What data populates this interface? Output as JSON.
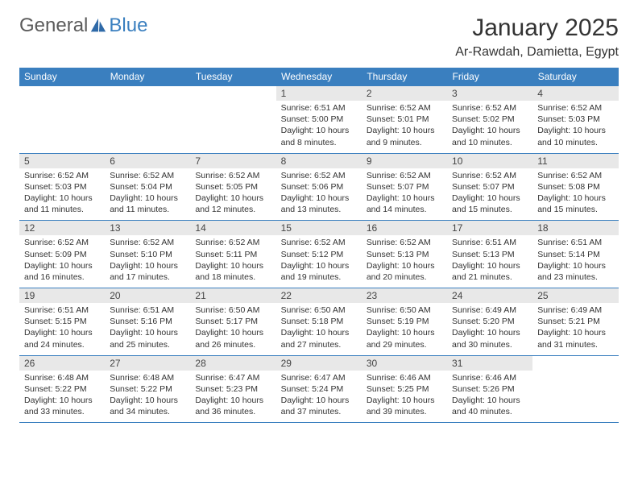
{
  "brand": {
    "part1": "General",
    "part2": "Blue"
  },
  "title": "January 2025",
  "location": "Ar-Rawdah, Damietta, Egypt",
  "colors": {
    "header_bg": "#3a7fbf",
    "header_text": "#ffffff",
    "daynum_bg": "#e8e8e8",
    "border": "#3a7fbf",
    "body_text": "#333333",
    "brand_grey": "#5b5b5b",
    "brand_blue": "#3a7fbf"
  },
  "weekdays": [
    "Sunday",
    "Monday",
    "Tuesday",
    "Wednesday",
    "Thursday",
    "Friday",
    "Saturday"
  ],
  "weeks": [
    [
      {
        "n": "",
        "sunrise": "",
        "sunset": "",
        "daylight": ""
      },
      {
        "n": "",
        "sunrise": "",
        "sunset": "",
        "daylight": ""
      },
      {
        "n": "",
        "sunrise": "",
        "sunset": "",
        "daylight": ""
      },
      {
        "n": "1",
        "sunrise": "Sunrise: 6:51 AM",
        "sunset": "Sunset: 5:00 PM",
        "daylight": "Daylight: 10 hours and 8 minutes."
      },
      {
        "n": "2",
        "sunrise": "Sunrise: 6:52 AM",
        "sunset": "Sunset: 5:01 PM",
        "daylight": "Daylight: 10 hours and 9 minutes."
      },
      {
        "n": "3",
        "sunrise": "Sunrise: 6:52 AM",
        "sunset": "Sunset: 5:02 PM",
        "daylight": "Daylight: 10 hours and 10 minutes."
      },
      {
        "n": "4",
        "sunrise": "Sunrise: 6:52 AM",
        "sunset": "Sunset: 5:03 PM",
        "daylight": "Daylight: 10 hours and 10 minutes."
      }
    ],
    [
      {
        "n": "5",
        "sunrise": "Sunrise: 6:52 AM",
        "sunset": "Sunset: 5:03 PM",
        "daylight": "Daylight: 10 hours and 11 minutes."
      },
      {
        "n": "6",
        "sunrise": "Sunrise: 6:52 AM",
        "sunset": "Sunset: 5:04 PM",
        "daylight": "Daylight: 10 hours and 11 minutes."
      },
      {
        "n": "7",
        "sunrise": "Sunrise: 6:52 AM",
        "sunset": "Sunset: 5:05 PM",
        "daylight": "Daylight: 10 hours and 12 minutes."
      },
      {
        "n": "8",
        "sunrise": "Sunrise: 6:52 AM",
        "sunset": "Sunset: 5:06 PM",
        "daylight": "Daylight: 10 hours and 13 minutes."
      },
      {
        "n": "9",
        "sunrise": "Sunrise: 6:52 AM",
        "sunset": "Sunset: 5:07 PM",
        "daylight": "Daylight: 10 hours and 14 minutes."
      },
      {
        "n": "10",
        "sunrise": "Sunrise: 6:52 AM",
        "sunset": "Sunset: 5:07 PM",
        "daylight": "Daylight: 10 hours and 15 minutes."
      },
      {
        "n": "11",
        "sunrise": "Sunrise: 6:52 AM",
        "sunset": "Sunset: 5:08 PM",
        "daylight": "Daylight: 10 hours and 15 minutes."
      }
    ],
    [
      {
        "n": "12",
        "sunrise": "Sunrise: 6:52 AM",
        "sunset": "Sunset: 5:09 PM",
        "daylight": "Daylight: 10 hours and 16 minutes."
      },
      {
        "n": "13",
        "sunrise": "Sunrise: 6:52 AM",
        "sunset": "Sunset: 5:10 PM",
        "daylight": "Daylight: 10 hours and 17 minutes."
      },
      {
        "n": "14",
        "sunrise": "Sunrise: 6:52 AM",
        "sunset": "Sunset: 5:11 PM",
        "daylight": "Daylight: 10 hours and 18 minutes."
      },
      {
        "n": "15",
        "sunrise": "Sunrise: 6:52 AM",
        "sunset": "Sunset: 5:12 PM",
        "daylight": "Daylight: 10 hours and 19 minutes."
      },
      {
        "n": "16",
        "sunrise": "Sunrise: 6:52 AM",
        "sunset": "Sunset: 5:13 PM",
        "daylight": "Daylight: 10 hours and 20 minutes."
      },
      {
        "n": "17",
        "sunrise": "Sunrise: 6:51 AM",
        "sunset": "Sunset: 5:13 PM",
        "daylight": "Daylight: 10 hours and 21 minutes."
      },
      {
        "n": "18",
        "sunrise": "Sunrise: 6:51 AM",
        "sunset": "Sunset: 5:14 PM",
        "daylight": "Daylight: 10 hours and 23 minutes."
      }
    ],
    [
      {
        "n": "19",
        "sunrise": "Sunrise: 6:51 AM",
        "sunset": "Sunset: 5:15 PM",
        "daylight": "Daylight: 10 hours and 24 minutes."
      },
      {
        "n": "20",
        "sunrise": "Sunrise: 6:51 AM",
        "sunset": "Sunset: 5:16 PM",
        "daylight": "Daylight: 10 hours and 25 minutes."
      },
      {
        "n": "21",
        "sunrise": "Sunrise: 6:50 AM",
        "sunset": "Sunset: 5:17 PM",
        "daylight": "Daylight: 10 hours and 26 minutes."
      },
      {
        "n": "22",
        "sunrise": "Sunrise: 6:50 AM",
        "sunset": "Sunset: 5:18 PM",
        "daylight": "Daylight: 10 hours and 27 minutes."
      },
      {
        "n": "23",
        "sunrise": "Sunrise: 6:50 AM",
        "sunset": "Sunset: 5:19 PM",
        "daylight": "Daylight: 10 hours and 29 minutes."
      },
      {
        "n": "24",
        "sunrise": "Sunrise: 6:49 AM",
        "sunset": "Sunset: 5:20 PM",
        "daylight": "Daylight: 10 hours and 30 minutes."
      },
      {
        "n": "25",
        "sunrise": "Sunrise: 6:49 AM",
        "sunset": "Sunset: 5:21 PM",
        "daylight": "Daylight: 10 hours and 31 minutes."
      }
    ],
    [
      {
        "n": "26",
        "sunrise": "Sunrise: 6:48 AM",
        "sunset": "Sunset: 5:22 PM",
        "daylight": "Daylight: 10 hours and 33 minutes."
      },
      {
        "n": "27",
        "sunrise": "Sunrise: 6:48 AM",
        "sunset": "Sunset: 5:22 PM",
        "daylight": "Daylight: 10 hours and 34 minutes."
      },
      {
        "n": "28",
        "sunrise": "Sunrise: 6:47 AM",
        "sunset": "Sunset: 5:23 PM",
        "daylight": "Daylight: 10 hours and 36 minutes."
      },
      {
        "n": "29",
        "sunrise": "Sunrise: 6:47 AM",
        "sunset": "Sunset: 5:24 PM",
        "daylight": "Daylight: 10 hours and 37 minutes."
      },
      {
        "n": "30",
        "sunrise": "Sunrise: 6:46 AM",
        "sunset": "Sunset: 5:25 PM",
        "daylight": "Daylight: 10 hours and 39 minutes."
      },
      {
        "n": "31",
        "sunrise": "Sunrise: 6:46 AM",
        "sunset": "Sunset: 5:26 PM",
        "daylight": "Daylight: 10 hours and 40 minutes."
      },
      {
        "n": "",
        "sunrise": "",
        "sunset": "",
        "daylight": ""
      }
    ]
  ]
}
